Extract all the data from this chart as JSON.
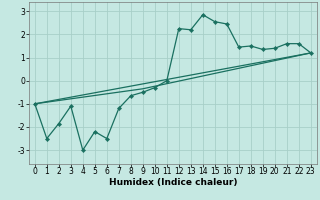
{
  "title": "",
  "xlabel": "Humidex (Indice chaleur)",
  "background_color": "#c5e8e2",
  "grid_color": "#a8cfc8",
  "line_color": "#1a7060",
  "xlim": [
    -0.5,
    23.5
  ],
  "ylim": [
    -3.6,
    3.4
  ],
  "yticks": [
    -3,
    -2,
    -1,
    0,
    1,
    2,
    3
  ],
  "xticks": [
    0,
    1,
    2,
    3,
    4,
    5,
    6,
    7,
    8,
    9,
    10,
    11,
    12,
    13,
    14,
    15,
    16,
    17,
    18,
    19,
    20,
    21,
    22,
    23
  ],
  "curve1_x": [
    0,
    1,
    2,
    3,
    4,
    5,
    6,
    7,
    8,
    9,
    10,
    11,
    12,
    13,
    14,
    15,
    16,
    17,
    18,
    19,
    20,
    21,
    22,
    23
  ],
  "curve1_y": [
    -1.0,
    -2.5,
    -1.85,
    -1.1,
    -3.0,
    -2.2,
    -2.5,
    -1.2,
    -0.65,
    -0.5,
    -0.3,
    0.0,
    2.25,
    2.2,
    2.85,
    2.55,
    2.45,
    1.45,
    1.5,
    1.35,
    1.4,
    1.6,
    1.6,
    1.2
  ],
  "curve2_x": [
    0,
    23
  ],
  "curve2_y": [
    -1.0,
    1.2
  ],
  "curve3_x": [
    0,
    9,
    23
  ],
  "curve3_y": [
    -1.0,
    -0.35,
    1.2
  ],
  "xlabel_fontsize": 6.5,
  "tick_fontsize": 5.5
}
